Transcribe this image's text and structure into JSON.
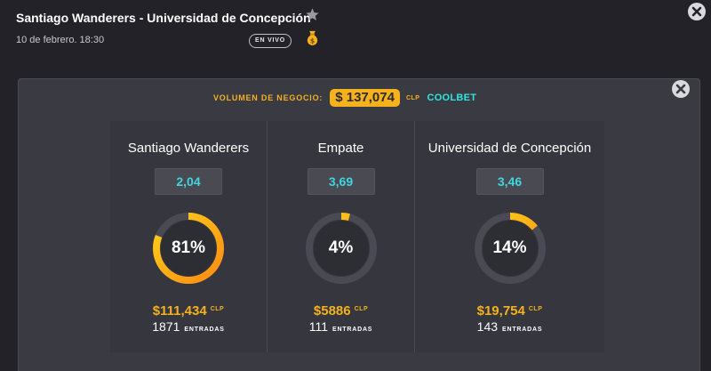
{
  "match": {
    "title": "Santiago Wanderers - Universidad de Concepción",
    "date": "10 de febrero. 18:30",
    "live_label": "EN VIVO"
  },
  "icons": {
    "favorite": "star-icon",
    "money": "money-bag-icon",
    "close": "close-icon"
  },
  "volume": {
    "label": "VOLUMEN DE NEGOCIO:",
    "value": "$ 137,074",
    "currency": "CLP",
    "brand_a": "COOLBET",
    "brand_b": ""
  },
  "colors": {
    "accent": "#f5b21c",
    "odds": "#3fd6e0",
    "ring_track": "#4a4a54",
    "ring_grad_start": "#ff8a14",
    "ring_grad_end": "#ffd21a"
  },
  "outcomes": [
    {
      "name": "Santiago Wanderers",
      "odds": "2,04",
      "percent_label": "81%",
      "percent": 81,
      "amount": "$111,434",
      "currency": "CLP",
      "entries": "1871",
      "entries_label": "ENTRADAS"
    },
    {
      "name": "Empate",
      "odds": "3,69",
      "percent_label": "4%",
      "percent": 4,
      "amount": "$5886",
      "currency": "CLP",
      "entries": "111",
      "entries_label": "ENTRADAS"
    },
    {
      "name": "Universidad de Concepción",
      "odds": "3,46",
      "percent_label": "14%",
      "percent": 14,
      "amount": "$19,754",
      "currency": "CLP",
      "entries": "143",
      "entries_label": "ENTRADAS"
    }
  ]
}
